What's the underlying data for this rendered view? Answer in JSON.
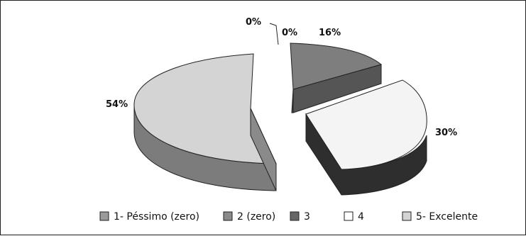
{
  "chart_data": {
    "type": "pie",
    "style": "3d-exploded",
    "categories": [
      "1- Péssimo (zero)",
      "2 (zero)",
      "3",
      "4",
      "5- Excelente"
    ],
    "values": [
      0,
      0,
      16,
      30,
      54
    ],
    "data_labels": [
      "0%",
      "0%",
      "16%",
      "30%",
      "54%"
    ],
    "colors": {
      "1- Péssimo (zero)": "#9a9a9a",
      "2 (zero)": "#8a8a8a",
      "3": "#7e7e7e",
      "4": "#f4f4f4",
      "5- Excelente": "#d4d4d4"
    },
    "side_colors": {
      "3": "#555555",
      "4": "#2e2e2e",
      "5- Excelente": "#7c7c7c"
    },
    "legend_position": "bottom",
    "legend_labels": [
      "1- Péssimo (zero)",
      "2 (zero)",
      "3",
      "4",
      "5- Excelente"
    ]
  }
}
